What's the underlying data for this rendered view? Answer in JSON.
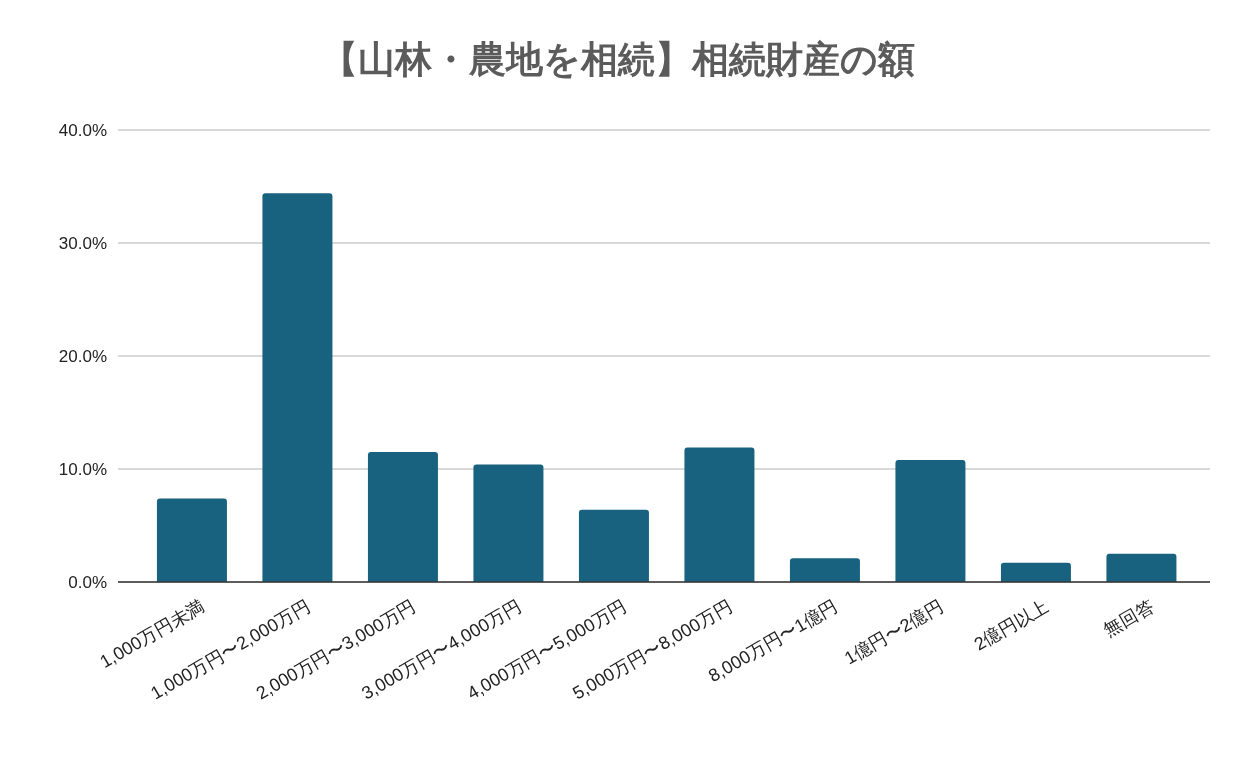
{
  "chart_data": {
    "type": "bar",
    "title": "【山林・農地を相続】相続財産の額",
    "categories": [
      "1,000万円未満",
      "1,000万円〜2,000万円",
      "2,000万円〜3,000万円",
      "3,000万円〜4,000万円",
      "4,000万円〜5,000万円",
      "5,000万円〜8,000万円",
      "8,000万円〜1億円",
      "1億円〜2億円",
      "2億円以上",
      "無回答"
    ],
    "values": [
      7.4,
      34.4,
      11.5,
      10.4,
      6.4,
      11.9,
      2.1,
      10.8,
      1.7,
      2.5
    ],
    "color": "#18617f",
    "ylim": [
      0,
      40
    ],
    "yticks": [
      {
        "value": 0,
        "label": "0.0%"
      },
      {
        "value": 10,
        "label": "10.0%"
      },
      {
        "value": 20,
        "label": "20.0%"
      },
      {
        "value": 30,
        "label": "30.0%"
      },
      {
        "value": 40,
        "label": "40.0%"
      }
    ],
    "grid": "y"
  }
}
